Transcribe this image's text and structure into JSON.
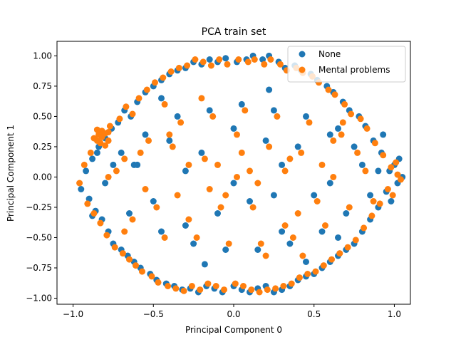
{
  "chart_data": {
    "type": "scatter",
    "title": "PCA train set",
    "xlabel": "Principal Component 0",
    "ylabel": "Principal Component 1",
    "xlim": [
      -1.1,
      1.1
    ],
    "ylim": [
      -1.05,
      1.12
    ],
    "xticks": [
      -1.0,
      -0.5,
      0.0,
      0.5,
      1.0
    ],
    "xtick_labels": [
      "−1.0",
      "−0.5",
      "0.0",
      "0.5",
      "1.0"
    ],
    "yticks": [
      -1.0,
      -0.75,
      -0.5,
      -0.25,
      0.0,
      0.25,
      0.5,
      0.75,
      1.0
    ],
    "ytick_labels": [
      "−1.00",
      "−0.75",
      "−0.50",
      "−0.25",
      "0.00",
      "0.25",
      "0.50",
      "0.75",
      "1.00"
    ],
    "grid": false,
    "legend_position": "top-right",
    "series": [
      {
        "name": "None",
        "color": "#1f77b4",
        "points": [
          [
            -0.95,
            -0.1
          ],
          [
            -0.92,
            0.05
          ],
          [
            -0.9,
            -0.18
          ],
          [
            -0.88,
            0.15
          ],
          [
            -0.86,
            -0.28
          ],
          [
            -0.84,
            0.25
          ],
          [
            -0.82,
            -0.35
          ],
          [
            -0.8,
            0.32
          ],
          [
            -0.78,
            -0.45
          ],
          [
            -0.76,
            0.4
          ],
          [
            -0.75,
            -0.55
          ],
          [
            -0.72,
            0.45
          ],
          [
            -0.7,
            -0.6
          ],
          [
            -0.68,
            0.55
          ],
          [
            -0.66,
            -0.65
          ],
          [
            -0.64,
            0.5
          ],
          [
            -0.62,
            -0.7
          ],
          [
            -0.6,
            0.62
          ],
          [
            -0.58,
            -0.75
          ],
          [
            -0.55,
            0.7
          ],
          [
            -0.52,
            -0.8
          ],
          [
            -0.5,
            0.75
          ],
          [
            -0.48,
            -0.85
          ],
          [
            -0.45,
            0.8
          ],
          [
            -0.42,
            -0.88
          ],
          [
            -0.4,
            0.85
          ],
          [
            -0.37,
            -0.9
          ],
          [
            -0.35,
            0.88
          ],
          [
            -0.32,
            -0.93
          ],
          [
            -0.3,
            0.9
          ],
          [
            -0.27,
            -0.92
          ],
          [
            -0.25,
            0.95
          ],
          [
            -0.22,
            -0.95
          ],
          [
            -0.2,
            0.93
          ],
          [
            -0.17,
            -0.9
          ],
          [
            -0.15,
            0.97
          ],
          [
            -0.12,
            -0.92
          ],
          [
            -0.1,
            0.95
          ],
          [
            -0.07,
            -0.95
          ],
          [
            -0.05,
            0.98
          ],
          [
            0.0,
            -0.9
          ],
          [
            0.02,
            0.95
          ],
          [
            0.05,
            -0.93
          ],
          [
            0.08,
            0.97
          ],
          [
            0.1,
            -0.95
          ],
          [
            0.12,
            1.0
          ],
          [
            0.15,
            -0.92
          ],
          [
            0.18,
            0.97
          ],
          [
            0.2,
            -0.9
          ],
          [
            0.22,
            1.0
          ],
          [
            0.25,
            -0.95
          ],
          [
            0.28,
            0.95
          ],
          [
            0.3,
            -0.93
          ],
          [
            0.32,
            0.9
          ],
          [
            0.35,
            -0.9
          ],
          [
            0.38,
            0.92
          ],
          [
            0.4,
            -0.85
          ],
          [
            0.42,
            0.88
          ],
          [
            0.45,
            -0.82
          ],
          [
            0.48,
            0.85
          ],
          [
            0.5,
            -0.8
          ],
          [
            0.52,
            0.8
          ],
          [
            0.55,
            -0.75
          ],
          [
            0.58,
            0.75
          ],
          [
            0.6,
            -0.7
          ],
          [
            0.62,
            0.7
          ],
          [
            0.65,
            -0.65
          ],
          [
            0.68,
            0.62
          ],
          [
            0.7,
            -0.6
          ],
          [
            0.72,
            0.55
          ],
          [
            0.75,
            -0.55
          ],
          [
            0.78,
            0.5
          ],
          [
            0.8,
            -0.45
          ],
          [
            0.82,
            0.42
          ],
          [
            0.85,
            -0.35
          ],
          [
            0.87,
            0.3
          ],
          [
            0.9,
            -0.25
          ],
          [
            0.92,
            0.2
          ],
          [
            0.95,
            -0.12
          ],
          [
            0.97,
            0.05
          ],
          [
            1.0,
            0.1
          ],
          [
            1.02,
            -0.05
          ],
          [
            1.05,
            0.0
          ],
          [
            1.03,
            0.15
          ],
          [
            0.98,
            -0.2
          ],
          [
            0.93,
            0.35
          ],
          [
            -0.6,
            0.1
          ],
          [
            -0.5,
            -0.2
          ],
          [
            -0.4,
            0.3
          ],
          [
            -0.3,
            -0.4
          ],
          [
            -0.2,
            0.2
          ],
          [
            -0.1,
            -0.3
          ],
          [
            0.0,
            0.4
          ],
          [
            0.1,
            -0.2
          ],
          [
            0.2,
            0.3
          ],
          [
            0.3,
            -0.45
          ],
          [
            0.4,
            0.25
          ],
          [
            0.5,
            -0.15
          ],
          [
            0.6,
            0.35
          ],
          [
            0.7,
            -0.3
          ],
          [
            -0.65,
            -0.3
          ],
          [
            -0.55,
            0.35
          ],
          [
            -0.45,
            -0.45
          ],
          [
            -0.35,
            0.5
          ],
          [
            -0.25,
            -0.55
          ],
          [
            -0.15,
            0.55
          ],
          [
            -0.05,
            -0.6
          ],
          [
            0.05,
            0.6
          ],
          [
            0.15,
            -0.6
          ],
          [
            0.25,
            0.55
          ],
          [
            0.35,
            -0.55
          ],
          [
            0.45,
            0.5
          ],
          [
            0.55,
            -0.45
          ],
          [
            0.65,
            0.4
          ],
          [
            -0.7,
            0.2
          ],
          [
            -0.3,
            0.05
          ],
          [
            0.0,
            -0.05
          ],
          [
            0.3,
            0.1
          ],
          [
            0.6,
            -0.05
          ],
          [
            0.8,
            0.1
          ],
          [
            -0.8,
            -0.05
          ],
          [
            0.85,
            -0.15
          ],
          [
            0.75,
            0.25
          ],
          [
            -0.75,
            0.1
          ],
          [
            -0.45,
            0.65
          ],
          [
            0.45,
            -0.7
          ],
          [
            -0.62,
            0.1
          ],
          [
            -0.18,
            -0.72
          ],
          [
            0.22,
            0.72
          ],
          [
            0.65,
            -0.5
          ],
          [
            -0.85,
            0.2
          ],
          [
            0.9,
            0.05
          ],
          [
            -0.88,
            -0.32
          ],
          [
            0.25,
            -0.15
          ]
        ]
      },
      {
        "name": "Mental problems",
        "color": "#ff7f0e",
        "points": [
          [
            -0.96,
            -0.05
          ],
          [
            -0.93,
            0.1
          ],
          [
            -0.91,
            -0.22
          ],
          [
            -0.89,
            0.2
          ],
          [
            -0.87,
            -0.3
          ],
          [
            -0.85,
            0.3
          ],
          [
            -0.83,
            -0.38
          ],
          [
            -0.81,
            0.36
          ],
          [
            -0.79,
            -0.48
          ],
          [
            -0.77,
            0.42
          ],
          [
            -0.84,
            0.35
          ],
          [
            -0.82,
            0.38
          ],
          [
            -0.8,
            0.36
          ],
          [
            -0.78,
            0.37
          ],
          [
            -0.83,
            0.28
          ],
          [
            -0.8,
            0.26
          ],
          [
            -0.87,
            0.32
          ],
          [
            -0.85,
            0.39
          ],
          [
            -0.78,
            0.3
          ],
          [
            -0.82,
            0.33
          ],
          [
            -0.74,
            -0.58
          ],
          [
            -0.71,
            0.48
          ],
          [
            -0.69,
            -0.63
          ],
          [
            -0.67,
            0.58
          ],
          [
            -0.65,
            -0.68
          ],
          [
            -0.63,
            0.52
          ],
          [
            -0.61,
            -0.73
          ],
          [
            -0.59,
            0.65
          ],
          [
            -0.57,
            -0.78
          ],
          [
            -0.54,
            0.72
          ],
          [
            -0.51,
            -0.82
          ],
          [
            -0.49,
            0.78
          ],
          [
            -0.47,
            -0.87
          ],
          [
            -0.44,
            0.82
          ],
          [
            -0.41,
            -0.9
          ],
          [
            -0.39,
            0.87
          ],
          [
            -0.36,
            -0.92
          ],
          [
            -0.34,
            0.9
          ],
          [
            -0.31,
            -0.94
          ],
          [
            -0.29,
            0.92
          ],
          [
            -0.26,
            -0.9
          ],
          [
            -0.24,
            0.97
          ],
          [
            -0.21,
            -0.93
          ],
          [
            -0.19,
            0.95
          ],
          [
            -0.16,
            -0.88
          ],
          [
            -0.14,
            0.92
          ],
          [
            -0.11,
            -0.9
          ],
          [
            -0.09,
            0.97
          ],
          [
            -0.06,
            -0.93
          ],
          [
            -0.04,
            0.93
          ],
          [
            0.01,
            -0.88
          ],
          [
            0.03,
            0.97
          ],
          [
            0.06,
            -0.9
          ],
          [
            0.09,
            0.95
          ],
          [
            0.11,
            -0.93
          ],
          [
            0.13,
            0.97
          ],
          [
            0.16,
            -0.95
          ],
          [
            0.19,
            0.93
          ],
          [
            0.21,
            -0.93
          ],
          [
            0.23,
            0.97
          ],
          [
            0.26,
            -0.92
          ],
          [
            0.29,
            0.93
          ],
          [
            0.31,
            -0.9
          ],
          [
            0.33,
            0.88
          ],
          [
            0.36,
            -0.88
          ],
          [
            0.39,
            0.9
          ],
          [
            0.41,
            -0.83
          ],
          [
            0.43,
            0.86
          ],
          [
            0.46,
            -0.8
          ],
          [
            0.49,
            0.83
          ],
          [
            0.51,
            -0.78
          ],
          [
            0.53,
            0.78
          ],
          [
            0.56,
            -0.73
          ],
          [
            0.59,
            0.72
          ],
          [
            0.61,
            -0.68
          ],
          [
            0.63,
            0.68
          ],
          [
            0.66,
            -0.63
          ],
          [
            0.69,
            0.6
          ],
          [
            0.71,
            -0.58
          ],
          [
            0.73,
            0.52
          ],
          [
            0.76,
            -0.52
          ],
          [
            0.79,
            0.48
          ],
          [
            0.81,
            -0.42
          ],
          [
            0.83,
            0.4
          ],
          [
            0.86,
            -0.32
          ],
          [
            0.88,
            0.28
          ],
          [
            0.91,
            -0.22
          ],
          [
            0.93,
            0.18
          ],
          [
            0.96,
            -0.1
          ],
          [
            0.98,
            0.08
          ],
          [
            1.01,
            0.12
          ],
          [
            1.04,
            -0.02
          ],
          [
            1.02,
            0.02
          ],
          [
            0.99,
            -0.15
          ],
          [
            -0.58,
            0.2
          ],
          [
            -0.48,
            -0.25
          ],
          [
            -0.38,
            0.25
          ],
          [
            -0.28,
            -0.35
          ],
          [
            -0.18,
            0.15
          ],
          [
            -0.08,
            -0.25
          ],
          [
            0.02,
            0.35
          ],
          [
            0.12,
            -0.25
          ],
          [
            0.22,
            0.25
          ],
          [
            0.32,
            -0.4
          ],
          [
            0.42,
            0.2
          ],
          [
            0.52,
            -0.2
          ],
          [
            0.62,
            0.3
          ],
          [
            0.72,
            -0.25
          ],
          [
            -0.63,
            -0.35
          ],
          [
            -0.53,
            0.3
          ],
          [
            -0.43,
            -0.5
          ],
          [
            -0.33,
            0.45
          ],
          [
            -0.23,
            -0.5
          ],
          [
            -0.13,
            0.5
          ],
          [
            -0.03,
            -0.55
          ],
          [
            0.07,
            0.55
          ],
          [
            0.17,
            -0.55
          ],
          [
            0.27,
            0.5
          ],
          [
            0.37,
            -0.5
          ],
          [
            0.47,
            0.45
          ],
          [
            0.57,
            -0.4
          ],
          [
            0.67,
            0.35
          ],
          [
            -0.68,
            0.15
          ],
          [
            -0.28,
            0.1
          ],
          [
            0.02,
            0.0
          ],
          [
            0.32,
            0.05
          ],
          [
            0.62,
            0.0
          ],
          [
            0.82,
            0.05
          ],
          [
            -0.78,
            0.0
          ],
          [
            0.87,
            -0.2
          ],
          [
            0.77,
            0.2
          ],
          [
            -0.73,
            0.05
          ],
          [
            -0.43,
            0.6
          ],
          [
            0.43,
            -0.65
          ],
          [
            -0.2,
            0.65
          ],
          [
            0.2,
            -0.65
          ],
          [
            -0.55,
            -0.1
          ],
          [
            0.55,
            0.1
          ],
          [
            -0.35,
            -0.15
          ],
          [
            0.35,
            0.15
          ],
          [
            -0.1,
            0.1
          ],
          [
            0.1,
            0.05
          ],
          [
            -0.15,
            -0.1
          ],
          [
            0.15,
            -0.05
          ],
          [
            0.68,
            0.45
          ],
          [
            -0.68,
            -0.45
          ],
          [
            0.4,
            -0.3
          ],
          [
            -0.4,
            0.35
          ],
          [
            0.05,
            0.2
          ],
          [
            -0.05,
            -0.15
          ]
        ]
      }
    ]
  }
}
